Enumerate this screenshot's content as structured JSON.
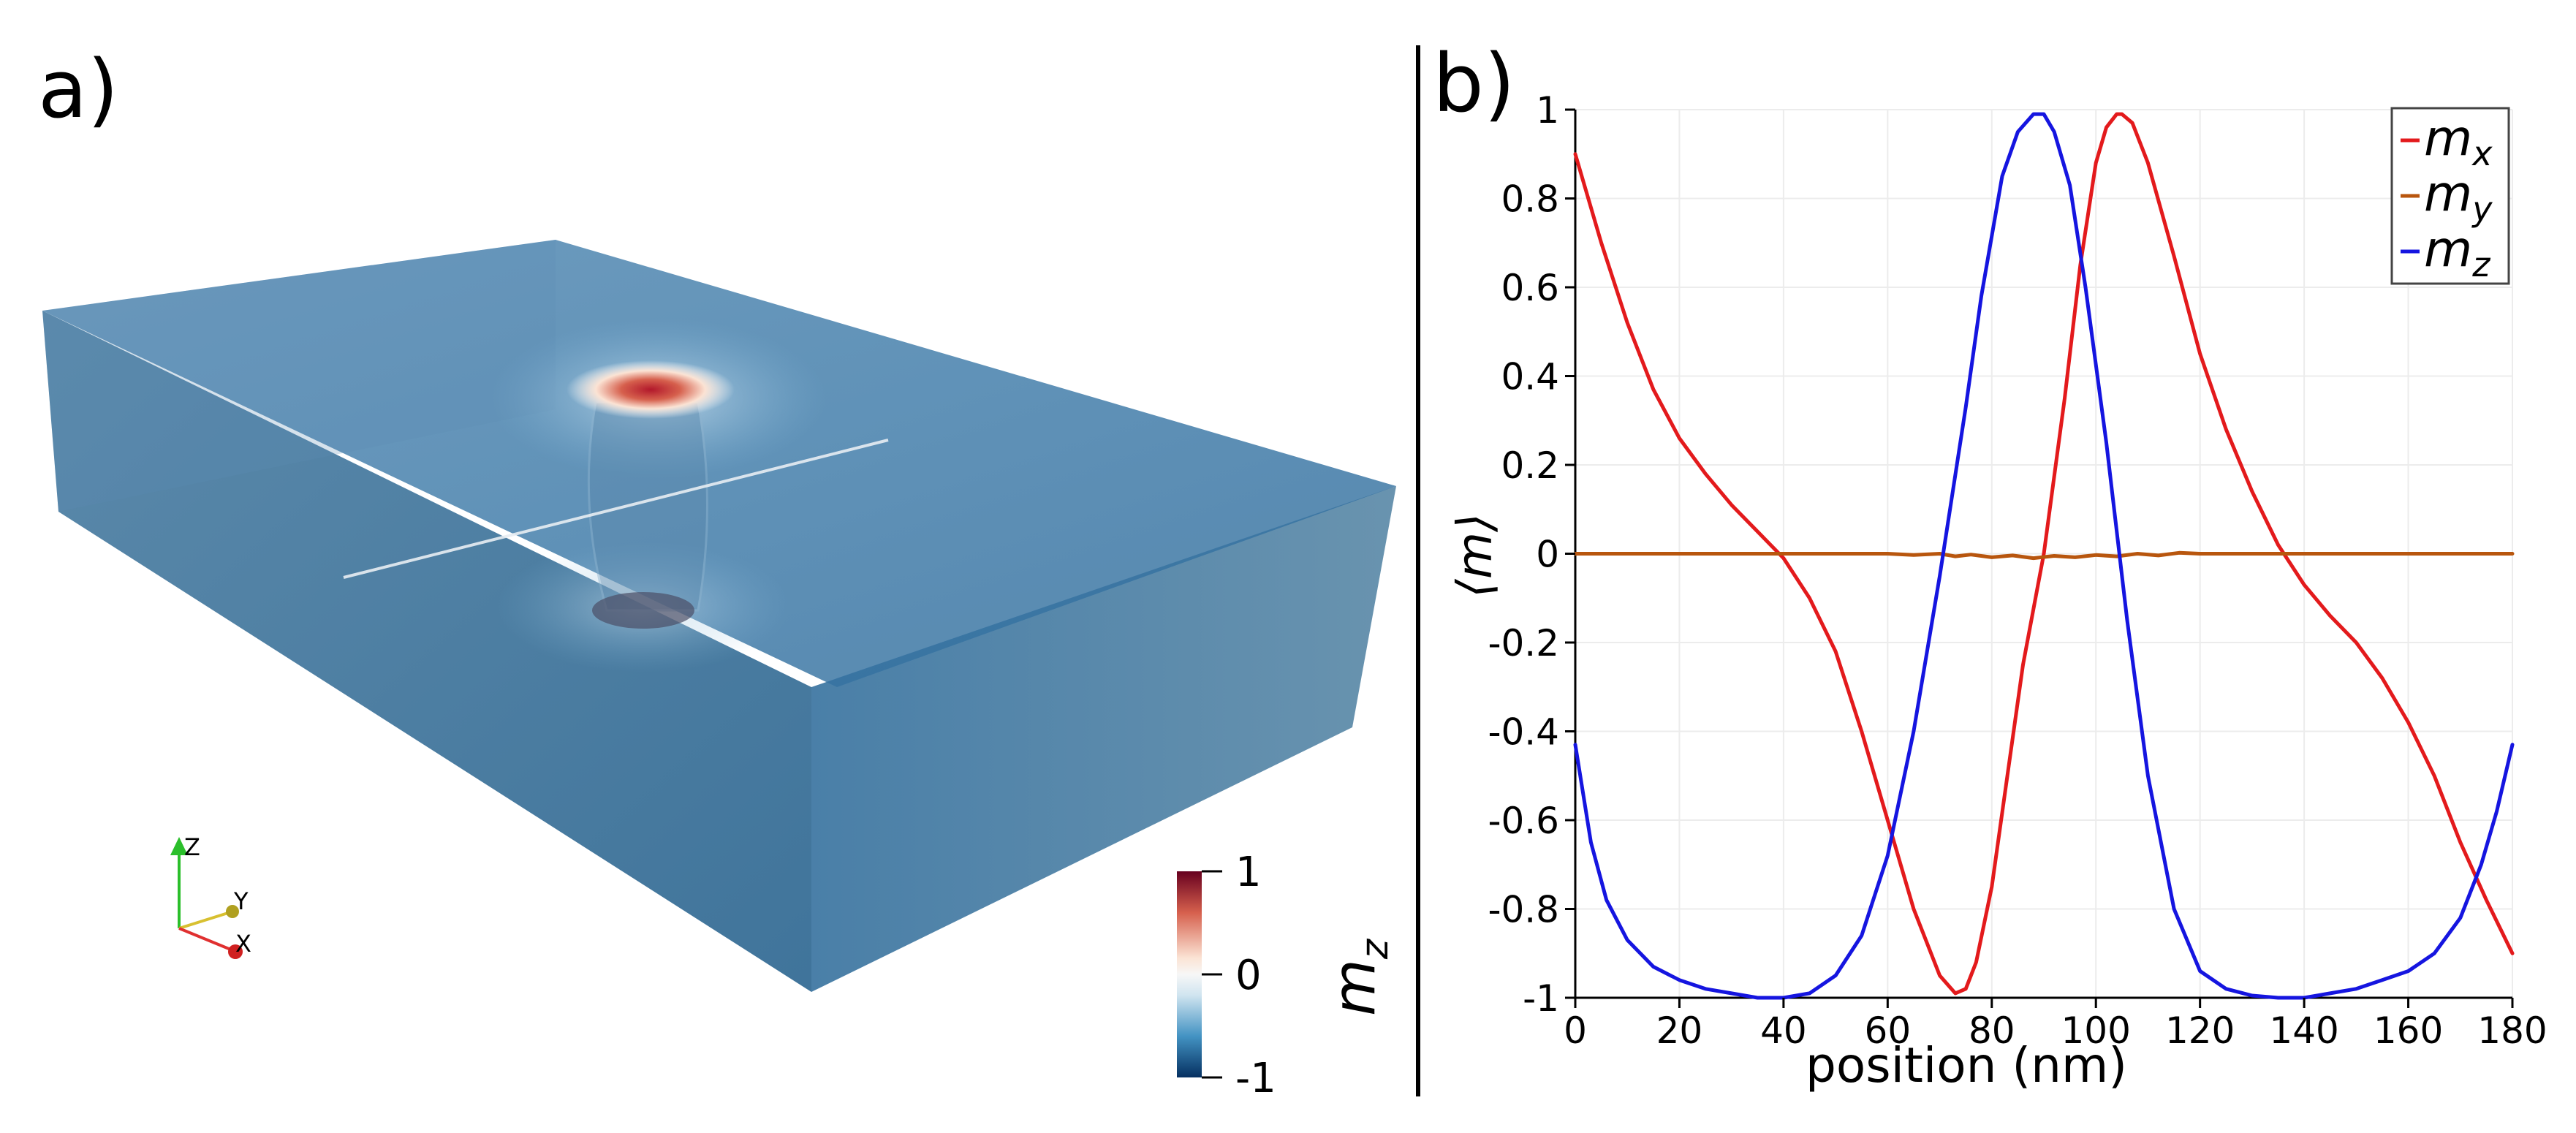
{
  "panels": {
    "a": {
      "label": "a)",
      "colorbar": {
        "title": "m",
        "title_sub": "z",
        "ticks": [
          "1",
          "0",
          "-1"
        ],
        "colors": {
          "top": "#67001f",
          "mid": "#f7f7f7",
          "bottom": "#053061"
        }
      },
      "orientation_axes": {
        "z": "Z",
        "y": "Y",
        "x": "X"
      },
      "colors": {
        "box_top": "#3f7fae",
        "box_side": "#2e6a99",
        "skyrmion_core": "#b2182b"
      }
    },
    "b": {
      "label": "b)",
      "xlabel": "position (nm)",
      "ylabel": "⟨m⟩",
      "legend_items": [
        {
          "symbol": "m",
          "sub": "x",
          "color": "#e31a1c"
        },
        {
          "symbol": "m",
          "sub": "y",
          "color": "#b8560e"
        },
        {
          "symbol": "m",
          "sub": "z",
          "color": "#1515e0"
        }
      ]
    }
  },
  "chart_data": {
    "type": "line",
    "xlabel": "position (nm)",
    "ylabel": "⟨m⟩",
    "xlim": [
      0,
      180
    ],
    "ylim": [
      -1,
      1
    ],
    "xticks": [
      0,
      20,
      40,
      60,
      80,
      100,
      120,
      140,
      160,
      180
    ],
    "xtick_labels": [
      "0",
      "20",
      "40",
      "60",
      "80",
      "100",
      "120",
      "140",
      "160",
      "180"
    ],
    "yticks": [
      1,
      0.8,
      0.6,
      0.4,
      0.2,
      0,
      -0.2,
      -0.4,
      -0.6,
      -0.8,
      -1
    ],
    "ytick_labels": [
      "1",
      "0.8",
      "0.6",
      "0.4",
      "0.2",
      "0",
      "-0.2",
      "-0.4",
      "-0.6",
      "-0.8",
      "-1"
    ],
    "grid": true,
    "legend": "top-right",
    "series": [
      {
        "name": "m_x",
        "color": "#e31a1c",
        "x": [
          0,
          5,
          10,
          15,
          20,
          25,
          30,
          35,
          40,
          45,
          50,
          55,
          60,
          65,
          70,
          73,
          75,
          77,
          80,
          83,
          86,
          90,
          94,
          97,
          100,
          102,
          104,
          105,
          107,
          110,
          115,
          120,
          125,
          130,
          135,
          140,
          145,
          150,
          155,
          160,
          165,
          170,
          175,
          180
        ],
        "y": [
          0.9,
          0.7,
          0.52,
          0.37,
          0.26,
          0.18,
          0.11,
          0.05,
          -0.01,
          -0.1,
          -0.22,
          -0.4,
          -0.6,
          -0.8,
          -0.95,
          -0.99,
          -0.98,
          -0.92,
          -0.75,
          -0.5,
          -0.25,
          0.0,
          0.35,
          0.65,
          0.88,
          0.96,
          0.99,
          0.99,
          0.97,
          0.88,
          0.67,
          0.45,
          0.28,
          0.14,
          0.02,
          -0.07,
          -0.14,
          -0.2,
          -0.28,
          -0.38,
          -0.5,
          -0.65,
          -0.78,
          -0.9
        ]
      },
      {
        "name": "m_y",
        "color": "#b8560e",
        "x": [
          0,
          20,
          40,
          60,
          65,
          70,
          73,
          76,
          80,
          84,
          88,
          92,
          96,
          100,
          104,
          108,
          112,
          116,
          120,
          130,
          140,
          160,
          180
        ],
        "y": [
          0.0,
          0.0,
          0.0,
          0.0,
          -0.003,
          0.0,
          -0.006,
          -0.002,
          -0.008,
          -0.004,
          -0.01,
          -0.005,
          -0.008,
          -0.003,
          -0.006,
          0.0,
          -0.004,
          0.002,
          0.0,
          0.0,
          0.0,
          0.0,
          0.0
        ]
      },
      {
        "name": "m_z",
        "color": "#1515e0",
        "x": [
          0,
          3,
          6,
          10,
          15,
          20,
          25,
          30,
          35,
          40,
          45,
          50,
          55,
          60,
          65,
          70,
          75,
          78,
          82,
          85,
          88,
          90,
          92,
          95,
          98,
          102,
          106,
          110,
          115,
          120,
          125,
          130,
          135,
          140,
          145,
          150,
          155,
          160,
          165,
          170,
          174,
          177,
          180
        ],
        "y": [
          -0.43,
          -0.65,
          -0.78,
          -0.87,
          -0.93,
          -0.96,
          -0.98,
          -0.99,
          -1.0,
          -1.0,
          -0.99,
          -0.95,
          -0.86,
          -0.68,
          -0.4,
          -0.05,
          0.33,
          0.58,
          0.85,
          0.95,
          0.99,
          0.99,
          0.95,
          0.83,
          0.6,
          0.25,
          -0.15,
          -0.5,
          -0.8,
          -0.94,
          -0.98,
          -0.995,
          -1.0,
          -1.0,
          -0.99,
          -0.98,
          -0.96,
          -0.94,
          -0.9,
          -0.82,
          -0.7,
          -0.58,
          -0.43
        ]
      }
    ]
  }
}
